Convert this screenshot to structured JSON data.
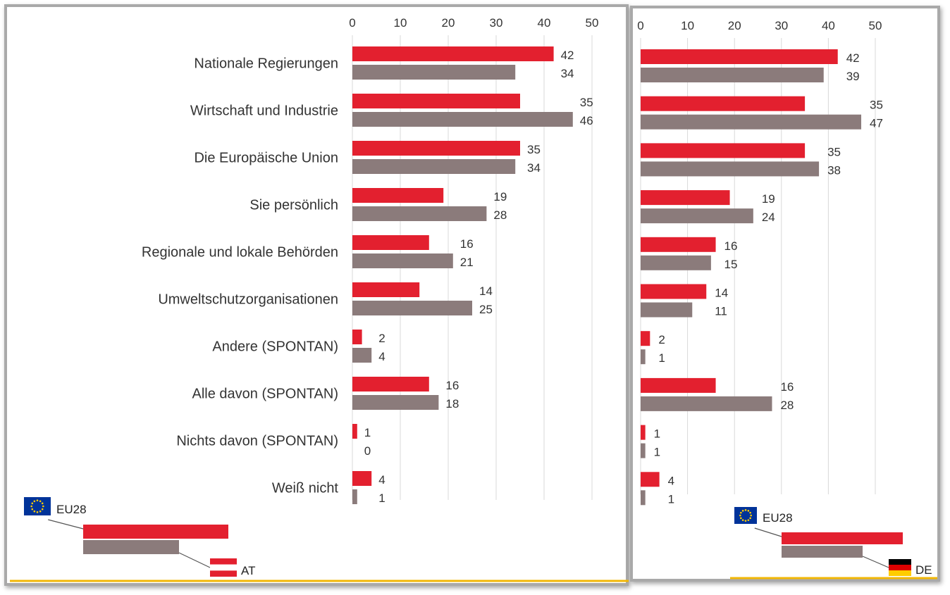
{
  "chart_data": [
    {
      "type": "bar",
      "orientation": "horizontal",
      "categories": [
        "Nationale Regierungen",
        "Wirtschaft und Industrie",
        "Die Europäische Union",
        "Sie persönlich",
        "Regionale und lokale Behörden",
        "Umweltschutzorganisationen",
        "Andere (SPONTAN)",
        "Alle davon (SPONTAN)",
        "Nichts davon (SPONTAN)",
        "Weiß nicht"
      ],
      "series": [
        {
          "name": "EU28",
          "color": "#e3202f",
          "values": [
            42,
            35,
            35,
            19,
            16,
            14,
            2,
            16,
            1,
            4
          ]
        },
        {
          "name": "AT",
          "color": "#8b7b7b",
          "values": [
            34,
            46,
            34,
            28,
            21,
            25,
            4,
            18,
            0,
            1
          ]
        }
      ],
      "xticks": [
        0,
        10,
        20,
        30,
        40,
        50
      ],
      "xlim": [
        0,
        50
      ],
      "grid": true,
      "legend_placement": "bottom-left",
      "legend_flags": {
        "EU28": "eu-flag",
        "AT": "austria-flag"
      }
    },
    {
      "type": "bar",
      "orientation": "horizontal",
      "categories": [
        "Nationale Regierungen",
        "Wirtschaft und Industrie",
        "Die Europäische Union",
        "Sie persönlich",
        "Regionale und lokale Behörden",
        "Umweltschutzorganisationen",
        "Andere (SPONTAN)",
        "Alle davon (SPONTAN)",
        "Nichts davon (SPONTAN)",
        "Weiß nicht"
      ],
      "show_category_labels": false,
      "series": [
        {
          "name": "EU28",
          "color": "#e3202f",
          "values": [
            42,
            35,
            35,
            19,
            16,
            14,
            2,
            16,
            1,
            4
          ]
        },
        {
          "name": "DE",
          "color": "#8b7b7b",
          "values": [
            39,
            47,
            38,
            24,
            15,
            11,
            1,
            28,
            1,
            1
          ]
        }
      ],
      "xticks": [
        0,
        10,
        20,
        30,
        40,
        50
      ],
      "xlim": [
        0,
        50
      ],
      "grid": true,
      "legend_placement": "bottom-right",
      "legend_flags": {
        "EU28": "eu-flag",
        "DE": "germany-flag"
      }
    }
  ],
  "colors": {
    "eu28_bar": "#e3202f",
    "country_bar": "#8b7b7b",
    "accent_line": "#f2b705",
    "eu_blue": "#003399",
    "eu_star": "#ffcc00"
  }
}
